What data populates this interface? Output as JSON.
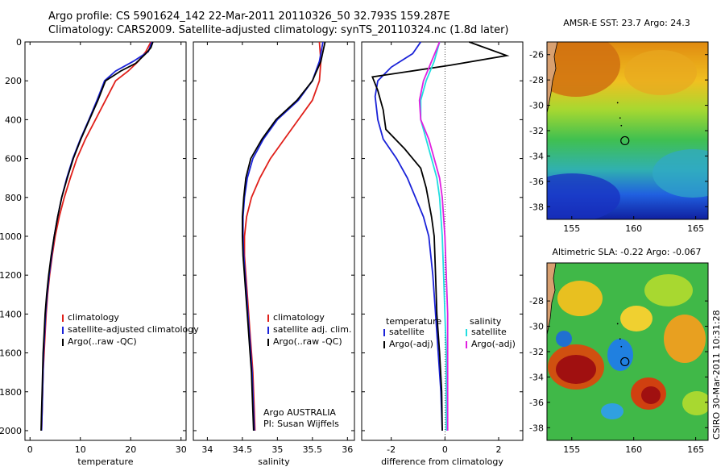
{
  "header": {
    "line1": "Argo profile: CS 5901624_142 22-Mar-2011 20110326_50 32.793S 159.287E",
    "line2": "Climatology: CARS2009. Satellite-adjusted climatology: synTS_20110324.nc (1.8d later)"
  },
  "colors": {
    "climatology": "#e0201a",
    "satellite": "#1a22d8",
    "argo": "#000000",
    "sat_sal": "#22dde0",
    "argo_adj_sal": "#e020e0"
  },
  "chart_data": [
    {
      "type": "line",
      "xlabel": "temperature",
      "xlim": [
        -1,
        31
      ],
      "xticks": [
        "0",
        "10",
        "20",
        "30"
      ],
      "xtick_values": [
        0,
        10,
        20,
        30
      ],
      "ylim": [
        0,
        2050
      ],
      "yticks": [
        "0",
        "200",
        "400",
        "600",
        "800",
        "1000",
        "1200",
        "1400",
        "1600",
        "1800",
        "2000"
      ],
      "ytick_values": [
        0,
        200,
        400,
        600,
        800,
        1000,
        1200,
        1400,
        1600,
        1800,
        2000
      ],
      "legend": [
        "climatology",
        "satellite-adjusted climatology",
        "Argo(..raw -QC)"
      ],
      "series": [
        {
          "name": "climatology",
          "color": "#e0201a",
          "points": [
            [
              24.0,
              0
            ],
            [
              23.0,
              50
            ],
            [
              21.5,
              100
            ],
            [
              19.5,
              150
            ],
            [
              17.0,
              200
            ],
            [
              15.0,
              300
            ],
            [
              13.0,
              400
            ],
            [
              11.0,
              500
            ],
            [
              9.3,
              600
            ],
            [
              8.0,
              700
            ],
            [
              6.8,
              800
            ],
            [
              5.8,
              900
            ],
            [
              5.0,
              1000
            ],
            [
              4.4,
              1100
            ],
            [
              3.9,
              1200
            ],
            [
              3.5,
              1300
            ],
            [
              3.2,
              1400
            ],
            [
              3.0,
              1500
            ],
            [
              2.8,
              1600
            ],
            [
              2.6,
              1700
            ],
            [
              2.5,
              1800
            ],
            [
              2.4,
              1900
            ],
            [
              2.3,
              2000
            ]
          ]
        },
        {
          "name": "satellite-adjusted climatology",
          "color": "#1a22d8",
          "points": [
            [
              24.2,
              0
            ],
            [
              23.5,
              50
            ],
            [
              20.5,
              100
            ],
            [
              17.0,
              150
            ],
            [
              14.8,
              200
            ],
            [
              13.3,
              300
            ],
            [
              11.7,
              400
            ],
            [
              10.0,
              500
            ],
            [
              8.5,
              600
            ],
            [
              7.3,
              700
            ],
            [
              6.3,
              800
            ],
            [
              5.5,
              900
            ],
            [
              4.8,
              1000
            ],
            [
              4.3,
              1100
            ],
            [
              3.8,
              1200
            ],
            [
              3.4,
              1300
            ],
            [
              3.1,
              1400
            ],
            [
              2.9,
              1500
            ],
            [
              2.7,
              1600
            ],
            [
              2.6,
              1700
            ],
            [
              2.5,
              1800
            ],
            [
              2.4,
              1900
            ],
            [
              2.3,
              2000
            ]
          ]
        },
        {
          "name": "Argo(..raw -QC)",
          "color": "#000000",
          "points": [
            [
              24.4,
              0
            ],
            [
              24.0,
              30
            ],
            [
              23.0,
              60
            ],
            [
              21.0,
              110
            ],
            [
              18.0,
              150
            ],
            [
              15.0,
              200
            ],
            [
              13.5,
              300
            ],
            [
              11.8,
              400
            ],
            [
              10.1,
              500
            ],
            [
              8.6,
              600
            ],
            [
              7.4,
              700
            ],
            [
              6.3,
              800
            ],
            [
              5.5,
              900
            ],
            [
              4.8,
              1000
            ],
            [
              4.2,
              1100
            ],
            [
              3.7,
              1200
            ],
            [
              3.3,
              1300
            ],
            [
              3.0,
              1400
            ],
            [
              2.8,
              1500
            ],
            [
              2.6,
              1600
            ],
            [
              2.5,
              1700
            ],
            [
              2.4,
              1800
            ],
            [
              2.3,
              1900
            ],
            [
              2.2,
              2000
            ]
          ]
        }
      ]
    },
    {
      "type": "line",
      "xlabel": "salinity",
      "xlim": [
        33.8,
        36.1
      ],
      "xticks": [
        "34",
        "34.5",
        "35",
        "35.5",
        "36"
      ],
      "xtick_values": [
        34,
        34.5,
        35,
        35.5,
        36
      ],
      "ylim": [
        0,
        2050
      ],
      "legend": [
        "climatology",
        "satellite adj. clim.",
        "Argo(..raw -QC)"
      ],
      "annotation": [
        "Argo AUSTRALIA",
        "PI: Susan Wijffels"
      ],
      "series": [
        {
          "name": "climatology",
          "color": "#e0201a",
          "points": [
            [
              35.6,
              0
            ],
            [
              35.62,
              100
            ],
            [
              35.6,
              200
            ],
            [
              35.5,
              300
            ],
            [
              35.3,
              400
            ],
            [
              35.1,
              500
            ],
            [
              34.9,
              600
            ],
            [
              34.75,
              700
            ],
            [
              34.63,
              800
            ],
            [
              34.56,
              900
            ],
            [
              34.53,
              1000
            ],
            [
              34.53,
              1100
            ],
            [
              34.55,
              1200
            ],
            [
              34.57,
              1300
            ],
            [
              34.59,
              1400
            ],
            [
              34.61,
              1500
            ],
            [
              34.63,
              1600
            ],
            [
              34.65,
              1700
            ],
            [
              34.66,
              1800
            ],
            [
              34.67,
              1900
            ],
            [
              34.68,
              2000
            ]
          ]
        },
        {
          "name": "satellite adj. clim.",
          "color": "#1a22d8",
          "points": [
            [
              35.65,
              0
            ],
            [
              35.6,
              100
            ],
            [
              35.5,
              200
            ],
            [
              35.3,
              300
            ],
            [
              35.0,
              400
            ],
            [
              34.8,
              500
            ],
            [
              34.65,
              600
            ],
            [
              34.57,
              700
            ],
            [
              34.53,
              800
            ],
            [
              34.51,
              900
            ],
            [
              34.51,
              1000
            ],
            [
              34.52,
              1100
            ],
            [
              34.54,
              1200
            ],
            [
              34.56,
              1300
            ],
            [
              34.58,
              1400
            ],
            [
              34.6,
              1500
            ],
            [
              34.62,
              1600
            ],
            [
              34.64,
              1700
            ],
            [
              34.65,
              1800
            ],
            [
              34.66,
              1900
            ],
            [
              34.67,
              2000
            ]
          ]
        },
        {
          "name": "Argo(..raw -QC)",
          "color": "#000000",
          "points": [
            [
              35.68,
              0
            ],
            [
              35.62,
              100
            ],
            [
              35.5,
              200
            ],
            [
              35.28,
              300
            ],
            [
              34.98,
              400
            ],
            [
              34.78,
              500
            ],
            [
              34.62,
              600
            ],
            [
              34.55,
              700
            ],
            [
              34.52,
              800
            ],
            [
              34.5,
              900
            ],
            [
              34.5,
              1000
            ],
            [
              34.51,
              1100
            ],
            [
              34.53,
              1200
            ],
            [
              34.55,
              1300
            ],
            [
              34.57,
              1400
            ],
            [
              34.59,
              1500
            ],
            [
              34.61,
              1600
            ],
            [
              34.63,
              1700
            ],
            [
              34.64,
              1800
            ],
            [
              34.65,
              1900
            ],
            [
              34.66,
              2000
            ]
          ]
        }
      ]
    },
    {
      "type": "line",
      "xlabel": "difference from climatology",
      "xlim": [
        -3.1,
        2.9
      ],
      "xticks": [
        "-2",
        "0",
        "2"
      ],
      "xtick_values": [
        -2,
        0,
        2
      ],
      "ylim": [
        0,
        2050
      ],
      "legend_titles": [
        "temperature",
        "salinity"
      ],
      "legend": [
        "satellite",
        "Argo(-adj)",
        "satellite",
        "Argo(-adj)"
      ],
      "series": [
        {
          "name": "temperature satellite",
          "color": "#1a22d8",
          "points": [
            [
              -0.9,
              0
            ],
            [
              -1.2,
              60
            ],
            [
              -2.0,
              130
            ],
            [
              -2.5,
              200
            ],
            [
              -2.6,
              280
            ],
            [
              -2.5,
              400
            ],
            [
              -2.3,
              500
            ],
            [
              -1.8,
              600
            ],
            [
              -1.4,
              700
            ],
            [
              -1.1,
              800
            ],
            [
              -0.8,
              900
            ],
            [
              -0.6,
              1000
            ],
            [
              -0.45,
              1200
            ],
            [
              -0.35,
              1400
            ],
            [
              -0.25,
              1600
            ],
            [
              -0.15,
              1800
            ],
            [
              -0.1,
              2000
            ]
          ]
        },
        {
          "name": "temperature Argo(-adj)",
          "color": "#000000",
          "points": [
            [
              0.9,
              0
            ],
            [
              2.3,
              70
            ],
            [
              0.2,
              120
            ],
            [
              -2.7,
              180
            ],
            [
              -2.5,
              250
            ],
            [
              -2.3,
              350
            ],
            [
              -2.2,
              450
            ],
            [
              -1.5,
              550
            ],
            [
              -0.9,
              650
            ],
            [
              -0.7,
              750
            ],
            [
              -0.5,
              900
            ],
            [
              -0.4,
              1000
            ],
            [
              -0.35,
              1200
            ],
            [
              -0.3,
              1400
            ],
            [
              -0.2,
              1600
            ],
            [
              -0.12,
              1800
            ],
            [
              -0.1,
              2000
            ]
          ]
        },
        {
          "name": "salinity satellite",
          "color": "#22dde0",
          "points": [
            [
              -0.2,
              0
            ],
            [
              -0.4,
              100
            ],
            [
              -0.7,
              200
            ],
            [
              -0.9,
              300
            ],
            [
              -0.9,
              400
            ],
            [
              -0.7,
              500
            ],
            [
              -0.5,
              600
            ],
            [
              -0.3,
              700
            ],
            [
              -0.2,
              800
            ],
            [
              -0.1,
              1000
            ],
            [
              -0.05,
              1200
            ],
            [
              0.0,
              1400
            ],
            [
              0.05,
              1600
            ],
            [
              0.05,
              1800
            ],
            [
              0.05,
              2000
            ]
          ]
        },
        {
          "name": "salinity Argo(-adj)",
          "color": "#e020e0",
          "points": [
            [
              -0.2,
              0
            ],
            [
              -0.5,
              100
            ],
            [
              -0.8,
              200
            ],
            [
              -0.95,
              300
            ],
            [
              -0.9,
              400
            ],
            [
              -0.6,
              500
            ],
            [
              -0.4,
              600
            ],
            [
              -0.2,
              700
            ],
            [
              -0.1,
              800
            ],
            [
              0.0,
              1000
            ],
            [
              0.05,
              1200
            ],
            [
              0.1,
              1400
            ],
            [
              0.1,
              1600
            ],
            [
              0.1,
              1800
            ],
            [
              0.1,
              2000
            ]
          ]
        }
      ]
    },
    {
      "type": "heatmap",
      "title": "AMSR-E SST: 23.7 Argo: 24.3",
      "xlim": [
        153,
        166
      ],
      "ylim": [
        -39,
        -25
      ],
      "xticks": [
        "155",
        "160",
        "165"
      ],
      "xtick_values": [
        155,
        160,
        165
      ],
      "yticks": [
        "-26",
        "-28",
        "-30",
        "-32",
        "-34",
        "-36",
        "-38"
      ],
      "ytick_values": [
        -26,
        -28,
        -30,
        -32,
        -34,
        -36,
        -38
      ],
      "marker": [
        159.287,
        -32.793
      ]
    },
    {
      "type": "heatmap",
      "title": "Altimetric SLA: -0.22 Argo: -0.067",
      "xlim": [
        153,
        166
      ],
      "ylim": [
        -39,
        -25
      ],
      "xticks": [
        "155",
        "160",
        "165"
      ],
      "xtick_values": [
        155,
        160,
        165
      ],
      "yticks": [
        "-28",
        "-30",
        "-32",
        "-34",
        "-36",
        "-38"
      ],
      "ytick_values": [
        -28,
        -30,
        -32,
        -34,
        -36,
        -38
      ],
      "marker": [
        159.287,
        -32.793
      ]
    }
  ],
  "footer": {
    "stamp": "CSIRO 30-Mar-2011 10:31:28"
  }
}
